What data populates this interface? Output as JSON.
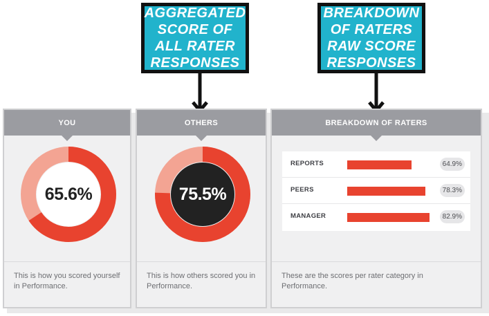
{
  "callouts": {
    "aggregated": "AGGREGATED\nSCORE OF\nALL RATER\nRESPONSES",
    "breakdown": "BREAKDOWN\nOF RATERS\nRAW SCORE\nRESPONSES"
  },
  "colors": {
    "accent": "#e8432f",
    "accent_light": "#f3a493",
    "callout": "#21b3cc",
    "header": "#9b9ca1",
    "dark": "#222222"
  },
  "you": {
    "header": "YOU",
    "score_label": "65.6%",
    "score": 65.6,
    "footer": "This is how you scored yourself in Performance."
  },
  "others": {
    "header": "OTHERS",
    "score_label": "75.5%",
    "score": 75.5,
    "footer": "This is how others scored you in Performance."
  },
  "breakdown": {
    "header": "BREAKDOWN OF RATERS",
    "raters": [
      {
        "label": "REPORTS",
        "value_label": "64.9%",
        "value": 64.9
      },
      {
        "label": "PEERS",
        "value_label": "78.3%",
        "value": 78.3
      },
      {
        "label": "MANAGER",
        "value_label": "82.9%",
        "value": 82.9
      }
    ],
    "footer": "These are the scores per rater category in Performance."
  }
}
